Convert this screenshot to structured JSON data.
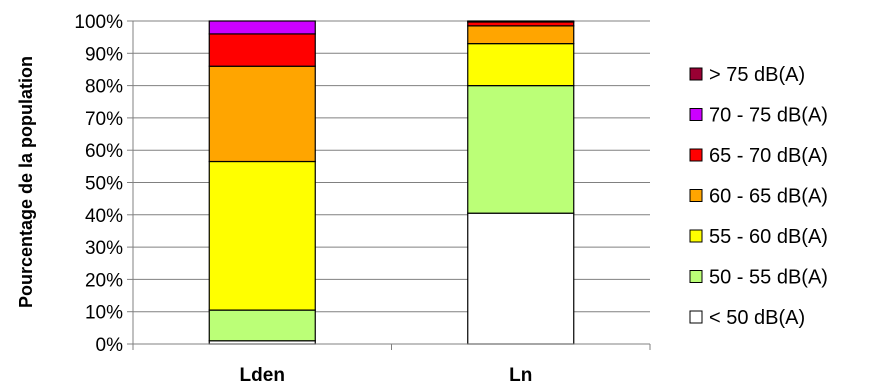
{
  "chart_data": {
    "type": "bar",
    "stacked": true,
    "percent": true,
    "ylabel": "Pourcentage de la population",
    "xlabel": "",
    "ylim": [
      0,
      100
    ],
    "yticks": [
      "0%",
      "10%",
      "20%",
      "30%",
      "40%",
      "50%",
      "60%",
      "70%",
      "80%",
      "90%",
      "100%"
    ],
    "grid": true,
    "legend_position": "right",
    "categories": [
      "Lden",
      "Ln"
    ],
    "series": [
      {
        "name": "< 50 dB(A)",
        "color": "#FFFFFF",
        "values": [
          1,
          40.5
        ]
      },
      {
        "name": "50 - 55 dB(A)",
        "color": "#BBFF77",
        "values": [
          9.5,
          39.5
        ]
      },
      {
        "name": "55 - 60 dB(A)",
        "color": "#FFFF00",
        "values": [
          46,
          13
        ]
      },
      {
        "name": "60 - 65 dB(A)",
        "color": "#FFA500",
        "values": [
          29.5,
          5.5
        ]
      },
      {
        "name": "65 - 70 dB(A)",
        "color": "#FF0000",
        "values": [
          10,
          1.2
        ]
      },
      {
        "name": "70 - 75 dB(A)",
        "color": "#CC00FF",
        "values": [
          4,
          0.3
        ]
      },
      {
        "name": "> 75 dB(A)",
        "color": "#990033",
        "values": [
          0,
          0
        ]
      }
    ]
  }
}
